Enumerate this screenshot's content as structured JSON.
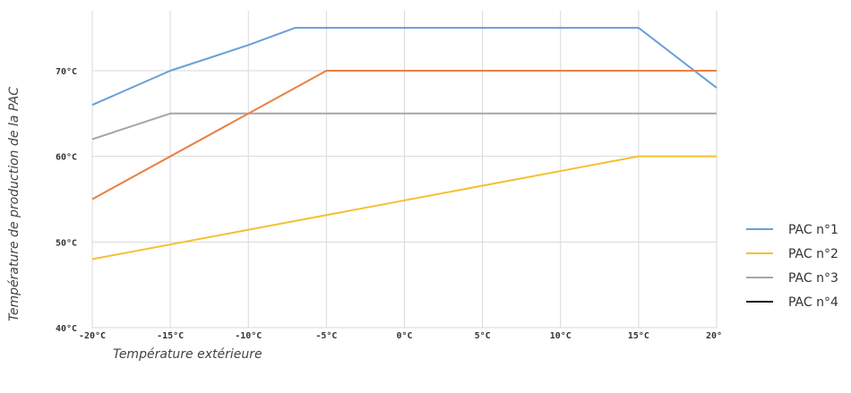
{
  "chart_data": {
    "type": "line",
    "xlabel": "Température extérieure",
    "ylabel": "Température de production de la PAC",
    "x": [
      -20,
      -15,
      -10,
      -5,
      0,
      5,
      10,
      15,
      20
    ],
    "x_tick_labels": [
      "-20°C",
      "-15°C",
      "-10°C",
      "-5°C",
      "0°C",
      "5°C",
      "10°C",
      "15°C",
      "20°"
    ],
    "y_ticks": [
      40,
      50,
      60,
      70
    ],
    "y_tick_labels": [
      "40°C",
      "50°C",
      "60°C",
      "70°C"
    ],
    "xlim": [
      -20,
      20
    ],
    "ylim": [
      40,
      77
    ],
    "grid": true,
    "legend_position": "right",
    "series": [
      {
        "name": "PAC n°1",
        "color": "#6a9fd8",
        "points": [
          [
            -20,
            66
          ],
          [
            -15,
            70
          ],
          [
            -10,
            73
          ],
          [
            -7,
            75
          ],
          [
            15,
            75
          ],
          [
            20,
            68
          ]
        ]
      },
      {
        "name": "PAC n°2",
        "color": "#f5c031",
        "points": [
          [
            -20,
            48
          ],
          [
            15,
            60
          ],
          [
            20,
            60
          ]
        ]
      },
      {
        "name": "PAC n°3",
        "color": "#a6a6a6",
        "points": [
          [
            -20,
            62
          ],
          [
            -15,
            65
          ],
          [
            20,
            65
          ]
        ]
      },
      {
        "name": "PAC n°4",
        "color": "#111111",
        "points": []
      },
      {
        "name": "",
        "color": "#e98044",
        "points": [
          [
            -20,
            55
          ],
          [
            -5,
            70
          ],
          [
            20,
            70
          ]
        ]
      }
    ]
  }
}
